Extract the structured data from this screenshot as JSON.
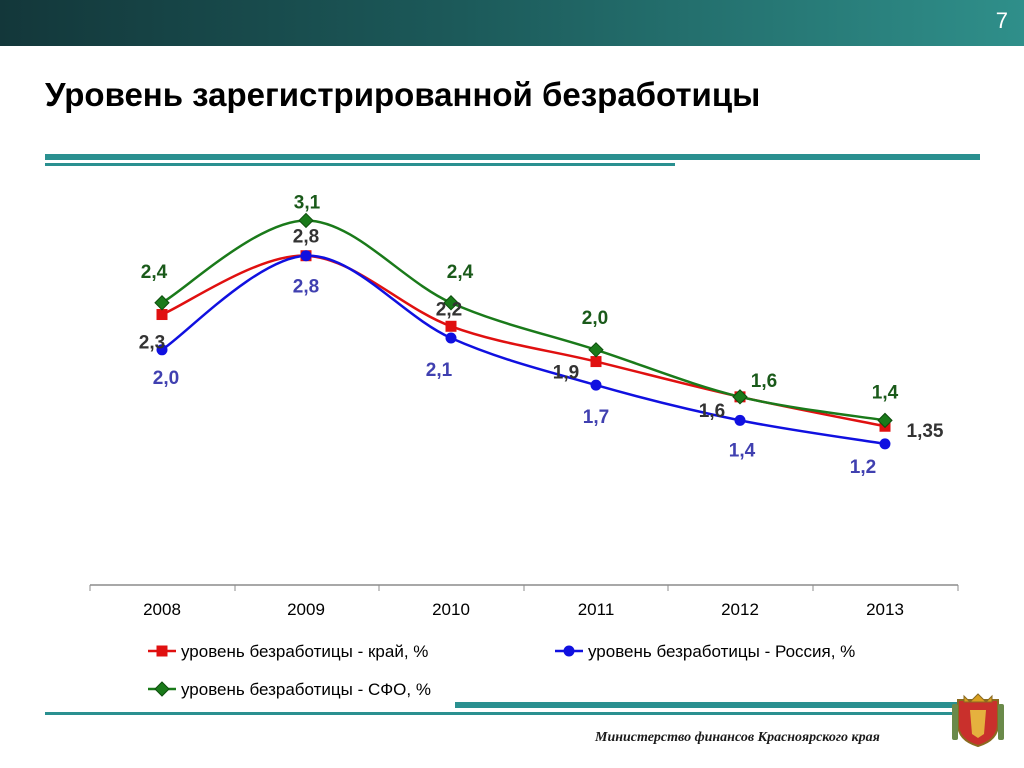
{
  "slide": {
    "number": "7",
    "title": "Уровень зарегистрированной безработицы"
  },
  "footer": {
    "text": "Министерство финансов Красноярского края"
  },
  "colors": {
    "kray": "#e01010",
    "russia": "#1010e0",
    "sfo": "#1a7a1a",
    "accent": "#2a9090"
  },
  "chart_data": {
    "type": "line",
    "categories": [
      "2008",
      "2009",
      "2010",
      "2011",
      "2012",
      "2013"
    ],
    "series": [
      {
        "name": "уровень безработицы - край, %",
        "values": [
          2.3,
          2.8,
          2.2,
          1.9,
          1.6,
          1.35
        ],
        "labels": [
          "2,3",
          "2,8",
          "2,2",
          "1,9",
          "1,6",
          "1,35"
        ],
        "color": "#e01010",
        "marker": "square"
      },
      {
        "name": "уровень безработицы - Россия, %",
        "values": [
          2.0,
          2.8,
          2.1,
          1.7,
          1.4,
          1.2
        ],
        "labels": [
          "2,0",
          "2,8",
          "2,1",
          "1,7",
          "1,4",
          "1,2"
        ],
        "color": "#1010e0",
        "marker": "circle"
      },
      {
        "name": "уровень безработицы - СФО, %",
        "values": [
          2.4,
          3.1,
          2.4,
          2.0,
          1.6,
          1.4
        ],
        "labels": [
          "2,4",
          "3,1",
          "2,4",
          "2,0",
          "1,6",
          "1,4"
        ],
        "color": "#1a7a1a",
        "marker": "diamond"
      }
    ],
    "title": "",
    "xlabel": "",
    "ylabel": "",
    "ylim": [
      0,
      3.4
    ],
    "grid": false,
    "legend": "bottom",
    "smooth": true
  }
}
